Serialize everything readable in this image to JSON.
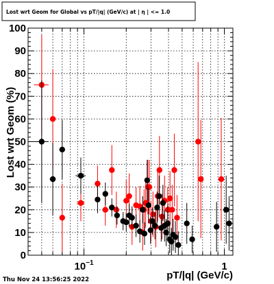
{
  "chart_data": {
    "type": "scatter",
    "title": "Lost wrt Geom for Global vs pT/|q| (GeV/c) at | η | <= 1.0",
    "xlabel": "pT/|q| (GeV/c)",
    "ylabel": "Lost wrt Geom (%)",
    "xscale": "log",
    "xlim": [
      0.04,
      1.15
    ],
    "ylim": [
      0,
      100
    ],
    "grid": true,
    "y_ticks": [
      "0",
      "10",
      "20",
      "30",
      "40",
      "50",
      "60",
      "70",
      "80",
      "90",
      "100"
    ],
    "x_ticks": [
      {
        "value": 0.1,
        "base": "10",
        "exp": "−1"
      },
      {
        "value": 1,
        "base": "1",
        "exp": ""
      }
    ],
    "series": [
      {
        "color": "#ff0000",
        "points": [
          {
            "x": 0.05,
            "y": 75,
            "err": 22,
            "xerr": 0.006
          },
          {
            "x": 0.06,
            "y": 60,
            "err": 22,
            "xerr": 0.003
          },
          {
            "x": 0.07,
            "y": 16.5,
            "err": 15,
            "xerr": 0.003
          },
          {
            "x": 0.095,
            "y": 23,
            "err": 8,
            "xerr": 0.006
          },
          {
            "x": 0.125,
            "y": 31.5,
            "err": 8,
            "xerr": 0.004
          },
          {
            "x": 0.142,
            "y": 20,
            "err": 7,
            "xerr": 0.003
          },
          {
            "x": 0.158,
            "y": 37.5,
            "err": 11,
            "xerr": 0.004
          },
          {
            "x": 0.17,
            "y": 20,
            "err": 8,
            "xerr": 0.003
          },
          {
            "x": 0.2,
            "y": 24,
            "err": 9,
            "xerr": 0.003
          },
          {
            "x": 0.21,
            "y": 26,
            "err": 10,
            "xerr": 0.003
          },
          {
            "x": 0.22,
            "y": 12.5,
            "err": 8,
            "xerr": 0.003
          },
          {
            "x": 0.235,
            "y": 22,
            "err": 8,
            "xerr": 0.003
          },
          {
            "x": 0.25,
            "y": 21.5,
            "err": 9,
            "xerr": 0.003
          },
          {
            "x": 0.262,
            "y": 10,
            "err": 8,
            "xerr": 0.003
          },
          {
            "x": 0.268,
            "y": 20,
            "err": 9,
            "xerr": 0.003
          },
          {
            "x": 0.275,
            "y": 23,
            "err": 11,
            "xerr": 0.003
          },
          {
            "x": 0.285,
            "y": 30,
            "err": 12,
            "xerr": 0.003
          },
          {
            "x": 0.292,
            "y": 30,
            "err": 12,
            "xerr": 0.003
          },
          {
            "x": 0.3,
            "y": 15,
            "err": 9,
            "xerr": 0.003
          },
          {
            "x": 0.31,
            "y": 18,
            "err": 10,
            "xerr": 0.003
          },
          {
            "x": 0.325,
            "y": 12.5,
            "err": 9,
            "xerr": 0.003
          },
          {
            "x": 0.335,
            "y": 26,
            "err": 11,
            "xerr": 0.003
          },
          {
            "x": 0.345,
            "y": 37.5,
            "err": 15,
            "xerr": 0.003
          },
          {
            "x": 0.36,
            "y": 17,
            "err": 10,
            "xerr": 0.003
          },
          {
            "x": 0.375,
            "y": 24,
            "err": 11,
            "xerr": 0.003
          },
          {
            "x": 0.395,
            "y": 20,
            "err": 10,
            "xerr": 0.003
          },
          {
            "x": 0.41,
            "y": 25,
            "err": 12,
            "xerr": 0.003
          },
          {
            "x": 0.425,
            "y": 20,
            "err": 11,
            "xerr": 0.003
          },
          {
            "x": 0.44,
            "y": 37.5,
            "err": 16,
            "xerr": 0.003
          },
          {
            "x": 0.46,
            "y": 16.5,
            "err": 10,
            "xerr": 0.003
          },
          {
            "x": 0.65,
            "y": 50,
            "err": 35,
            "xerr": 0.003
          },
          {
            "x": 0.68,
            "y": 33.5,
            "err": 26,
            "xerr": 0.003
          },
          {
            "x": 0.95,
            "y": 33.5,
            "err": 27,
            "xerr": 0.003
          }
        ]
      },
      {
        "color": "#000000",
        "points": [
          {
            "x": 0.05,
            "y": 50,
            "err": 27,
            "xerr": 0.006
          },
          {
            "x": 0.06,
            "y": 33.5,
            "err": 16,
            "xerr": 0.003
          },
          {
            "x": 0.07,
            "y": 46.5,
            "err": 13,
            "xerr": 0.003
          },
          {
            "x": 0.095,
            "y": 35,
            "err": 8,
            "xerr": 0.008
          },
          {
            "x": 0.125,
            "y": 24.5,
            "err": 6,
            "xerr": 0.004
          },
          {
            "x": 0.142,
            "y": 27,
            "err": 5,
            "xerr": 0.003
          },
          {
            "x": 0.158,
            "y": 21,
            "err": 4,
            "xerr": 0.004
          },
          {
            "x": 0.172,
            "y": 17.5,
            "err": 4,
            "xerr": 0.004
          },
          {
            "x": 0.19,
            "y": 15,
            "err": 4,
            "xerr": 0.003
          },
          {
            "x": 0.2,
            "y": 14.5,
            "err": 4,
            "xerr": 0.003
          },
          {
            "x": 0.21,
            "y": 17.5,
            "err": 5,
            "xerr": 0.003
          },
          {
            "x": 0.22,
            "y": 16.5,
            "err": 5,
            "xerr": 0.003
          },
          {
            "x": 0.235,
            "y": 13,
            "err": 5,
            "xerr": 0.003
          },
          {
            "x": 0.25,
            "y": 10.5,
            "err": 5,
            "xerr": 0.003
          },
          {
            "x": 0.262,
            "y": 20,
            "err": 6,
            "xerr": 0.003
          },
          {
            "x": 0.27,
            "y": 9.5,
            "err": 5,
            "xerr": 0.003
          },
          {
            "x": 0.282,
            "y": 33,
            "err": 9,
            "xerr": 0.003
          },
          {
            "x": 0.288,
            "y": 22,
            "err": 8,
            "xerr": 0.003
          },
          {
            "x": 0.298,
            "y": 11,
            "err": 6,
            "xerr": 0.003
          },
          {
            "x": 0.308,
            "y": 15,
            "err": 6,
            "xerr": 0.003
          },
          {
            "x": 0.32,
            "y": 13,
            "err": 6,
            "xerr": 0.003
          },
          {
            "x": 0.332,
            "y": 21,
            "err": 7,
            "xerr": 0.003
          },
          {
            "x": 0.343,
            "y": 26,
            "err": 9,
            "xerr": 0.003
          },
          {
            "x": 0.355,
            "y": 12,
            "err": 6,
            "xerr": 0.003
          },
          {
            "x": 0.365,
            "y": 23,
            "err": 8,
            "xerr": 0.003
          },
          {
            "x": 0.375,
            "y": 13,
            "err": 7,
            "xerr": 0.003
          },
          {
            "x": 0.385,
            "y": 10,
            "err": 6,
            "xerr": 0.003
          },
          {
            "x": 0.395,
            "y": 14,
            "err": 8,
            "xerr": 0.003
          },
          {
            "x": 0.408,
            "y": 7,
            "err": 6,
            "xerr": 0.003
          },
          {
            "x": 0.42,
            "y": 6,
            "err": 6,
            "xerr": 0.003
          },
          {
            "x": 0.432,
            "y": 9,
            "err": 7,
            "xerr": 0.003
          },
          {
            "x": 0.448,
            "y": 8,
            "err": 7,
            "xerr": 0.003
          },
          {
            "x": 0.47,
            "y": 4.5,
            "err": 6,
            "xerr": 0.003
          },
          {
            "x": 0.54,
            "y": 14,
            "err": 9,
            "xerr": 0.003
          },
          {
            "x": 0.59,
            "y": 7,
            "err": 6,
            "xerr": 0.003
          },
          {
            "x": 0.88,
            "y": 12.5,
            "err": 11,
            "xerr": 0.003
          },
          {
            "x": 1.03,
            "y": 20,
            "err": 15,
            "xerr": 0.003
          },
          {
            "x": 1.08,
            "y": 14,
            "err": 12,
            "xerr": 0.003
          }
        ]
      }
    ]
  },
  "timestamp": "Thu Nov 24 13:56:25 2022"
}
